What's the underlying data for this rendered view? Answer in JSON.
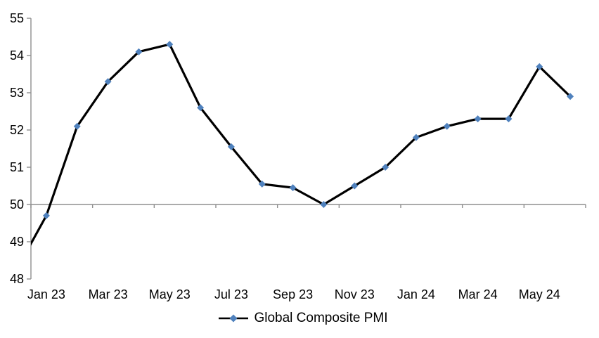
{
  "page": {
    "background_color": "#ffffff"
  },
  "chart_data": {
    "type": "line",
    "title": "",
    "legend": {
      "position": "bottom",
      "entries": [
        {
          "label": "Global Composite PMI",
          "marker": "diamond",
          "marker_color": "#4F81BD",
          "line_color": "#000000"
        }
      ]
    },
    "x": {
      "categories": [
        "Dec 22",
        "Jan 23",
        "Feb 23",
        "Mar 23",
        "Apr 23",
        "May 23",
        "Jun 23",
        "Jul 23",
        "Aug 23",
        "Sep 23",
        "Oct 23",
        "Nov 23",
        "Dec 23",
        "Jan 24",
        "Feb 24",
        "Mar 24",
        "Apr 24",
        "May 24",
        "Jun 24"
      ],
      "tick_labels": [
        "Jan 23",
        "Mar 23",
        "May 23",
        "Jul 23",
        "Sep 23",
        "Nov 23",
        "Jan 24",
        "Mar 24",
        "May 24"
      ],
      "label_every_n_months": 2,
      "first_point_clipped_at_left_axis": true
    },
    "y": {
      "min": 48,
      "max": 55,
      "ticks": [
        48,
        49,
        50,
        51,
        52,
        53,
        54,
        55
      ],
      "axis_crosses_at": 50
    },
    "series": [
      {
        "name": "Global Composite PMI",
        "line_color": "#000000",
        "marker": "diamond",
        "marker_color": "#4F81BD",
        "values": [
          48.2,
          49.7,
          52.1,
          53.3,
          54.1,
          54.3,
          52.6,
          51.55,
          50.55,
          50.45,
          50.0,
          50.5,
          51.0,
          51.8,
          52.1,
          52.3,
          52.3,
          53.7,
          52.9
        ]
      }
    ],
    "grid": false,
    "axis_color": "#8f8f8f",
    "baseline_at_50": true
  }
}
